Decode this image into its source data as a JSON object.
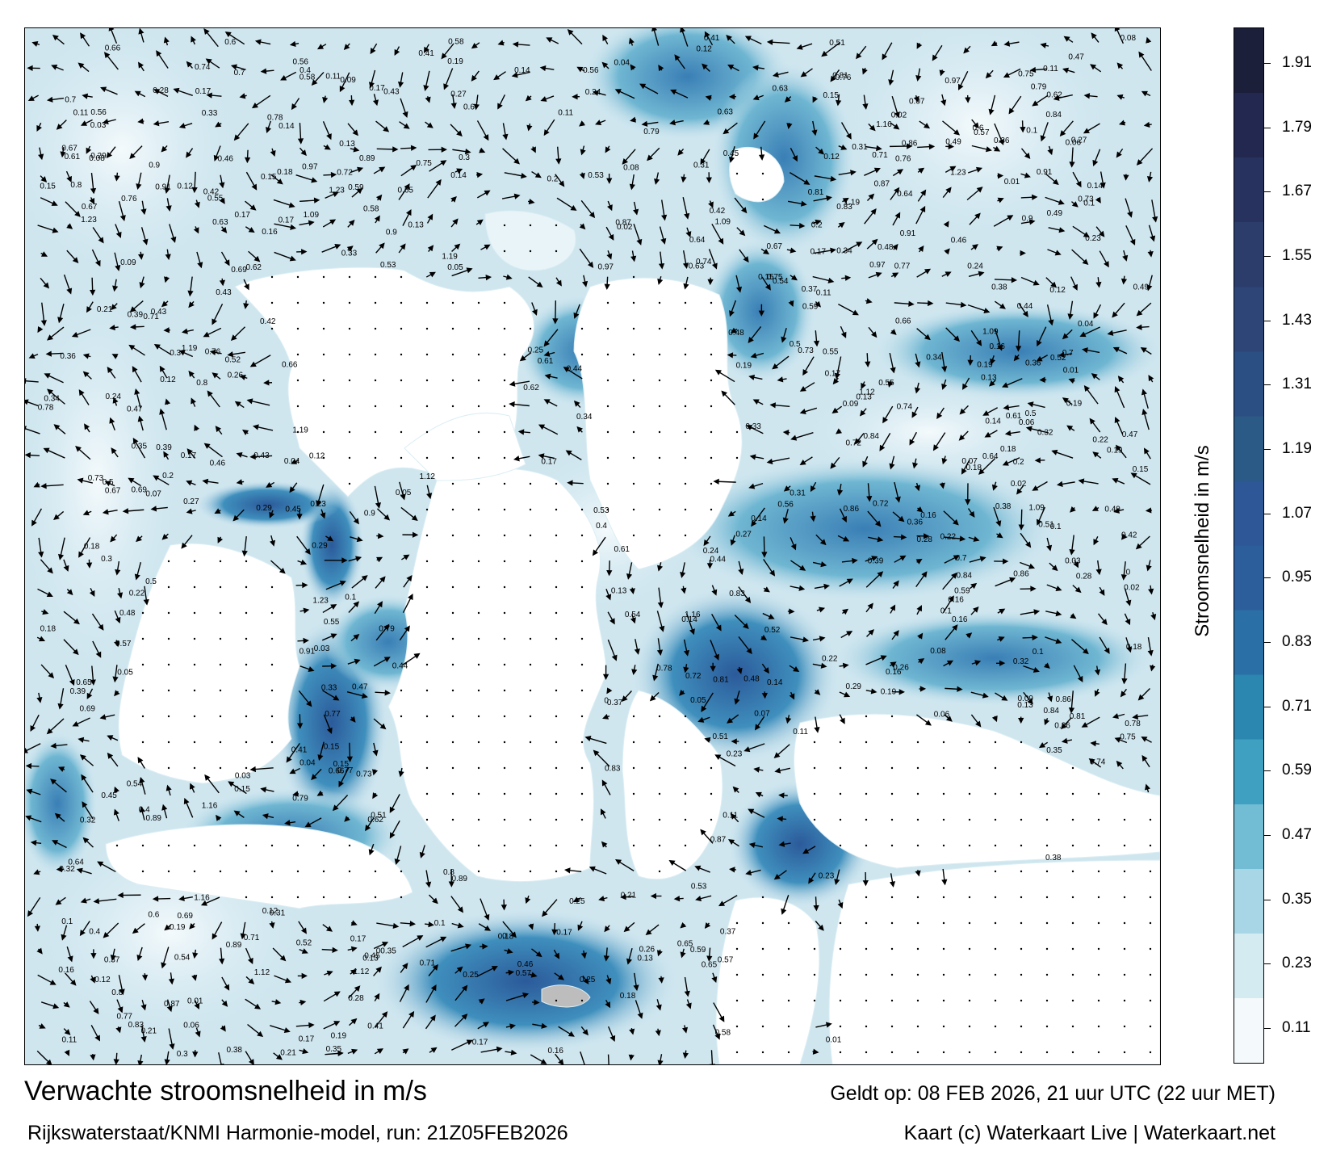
{
  "title": "Verwachte stroomsnelheid in m/s",
  "subtitle": "Rijkswaterstaat/KNMI Harmonie-model, run: 21Z05FEB2026",
  "valid_time": "Geldt op: 08 FEB 2026, 21 uur UTC (22 uur MET)",
  "credit": "Kaart (c) Waterkaart Live | Waterkaart.net",
  "colorbar": {
    "title": "Stroomsnelheid in m/s",
    "ticks": [
      "1.91",
      "1.79",
      "1.67",
      "1.55",
      "1.43",
      "1.31",
      "1.19",
      "1.07",
      "0.95",
      "0.83",
      "0.71",
      "0.59",
      "0.47",
      "0.35",
      "0.23",
      "0.11"
    ],
    "colors": [
      "#f4f9fb",
      "#d5ebf2",
      "#a8d6e6",
      "#73bdd4",
      "#3fa0c2",
      "#2b86b0",
      "#2a6fa6",
      "#2c5e9c",
      "#2d5796",
      "#2b5a86",
      "#2c4f83",
      "#2d4677",
      "#2c3d6c",
      "#28325e",
      "#232850",
      "#1c1f3a"
    ]
  },
  "map": {
    "labels": [
      {
        "text": "0.17"
      },
      {
        "text": "0.1"
      },
      {
        "text": "0.18"
      },
      {
        "text": "0.17"
      },
      {
        "text": "0.16"
      },
      {
        "text": "0.14"
      },
      {
        "text": "0.11"
      },
      {
        "text": "0.12"
      },
      {
        "text": "0.13"
      },
      {
        "text": "0.15"
      },
      {
        "text": "0.07"
      },
      {
        "text": "0.18"
      },
      {
        "text": "0.08"
      },
      {
        "text": "0.16"
      },
      {
        "text": "0.15"
      },
      {
        "text": "0.17"
      },
      {
        "text": "0.19"
      },
      {
        "text": "0.21"
      },
      {
        "text": "0.25"
      },
      {
        "text": "0.26"
      },
      {
        "text": "0.09"
      },
      {
        "text": "0.12"
      },
      {
        "text": "0.06"
      },
      {
        "text": "0.1"
      },
      {
        "text": "0.13"
      },
      {
        "text": "0.24"
      },
      {
        "text": "0.29"
      },
      {
        "text": "0.32"
      },
      {
        "text": "0.36"
      },
      {
        "text": "0.4"
      },
      {
        "text": "0.37"
      },
      {
        "text": "0.34"
      },
      {
        "text": "0.31"
      },
      {
        "text": "0.28"
      },
      {
        "text": "0.23"
      },
      {
        "text": "0.2"
      },
      {
        "text": "0.22"
      },
      {
        "text": "0.27"
      },
      {
        "text": "0.33"
      },
      {
        "text": "0.35"
      },
      {
        "text": "0.41"
      },
      {
        "text": "0.48"
      },
      {
        "text": "0.43"
      },
      {
        "text": "0.47"
      },
      {
        "text": "0.55"
      },
      {
        "text": "0.67"
      },
      {
        "text": "0.72"
      },
      {
        "text": "0.62"
      },
      {
        "text": "0.58"
      },
      {
        "text": "0.49"
      },
      {
        "text": "0.66"
      },
      {
        "text": "0.81"
      },
      {
        "text": "0.79"
      },
      {
        "text": "0.76"
      },
      {
        "text": "0.73"
      },
      {
        "text": "0.97"
      },
      {
        "text": "0.74"
      },
      {
        "text": "0.65"
      },
      {
        "text": "0.54"
      },
      {
        "text": "0.53"
      },
      {
        "text": "0.91"
      },
      {
        "text": "0.86"
      },
      {
        "text": "0.84"
      },
      {
        "text": "0.78"
      },
      {
        "text": "0.75"
      },
      {
        "text": "1.12"
      },
      {
        "text": "1.09"
      },
      {
        "text": "1.23"
      },
      {
        "text": "1.16"
      },
      {
        "text": "1.19"
      },
      {
        "text": "0.89"
      },
      {
        "text": "0.69"
      },
      {
        "text": "0.63"
      },
      {
        "text": "0.57"
      },
      {
        "text": "0.51"
      },
      {
        "text": "0.05"
      },
      {
        "text": "0.04"
      },
      {
        "text": "0.03"
      },
      {
        "text": "0.02"
      },
      {
        "text": "0.01"
      },
      {
        "text": "0"
      },
      {
        "text": "0.11"
      },
      {
        "text": "0.14"
      },
      {
        "text": "0.19"
      },
      {
        "text": "0.3"
      },
      {
        "text": "0.42"
      },
      {
        "text": "0.44"
      },
      {
        "text": "0.45"
      },
      {
        "text": "0.46"
      },
      {
        "text": "0.38"
      },
      {
        "text": "0.39"
      },
      {
        "text": "0.5"
      },
      {
        "text": "0.52"
      },
      {
        "text": "0.56"
      },
      {
        "text": "0.6"
      },
      {
        "text": "0.64"
      },
      {
        "text": "0.7"
      },
      {
        "text": "0.71"
      },
      {
        "text": "0.77"
      },
      {
        "text": "0.83"
      },
      {
        "text": "0.87"
      },
      {
        "text": "0.9"
      },
      {
        "text": "0.8"
      },
      {
        "text": "0.61"
      },
      {
        "text": "0.59"
      }
    ]
  }
}
